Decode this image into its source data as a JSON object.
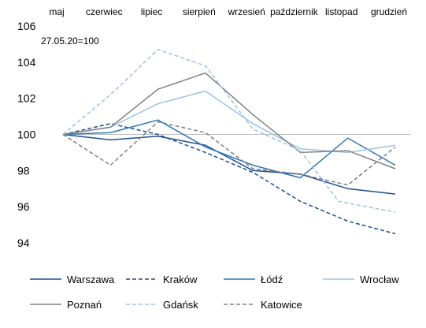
{
  "chart_data": {
    "type": "line",
    "title": "",
    "xlabel": "",
    "ylabel": "",
    "annotation": "27.05.20=100",
    "categories": [
      "maj",
      "czerwiec",
      "lipiec",
      "sierpień",
      "wrzesień",
      "październik",
      "listopad",
      "grudzień"
    ],
    "ylim": [
      94,
      106
    ],
    "yticks": [
      94,
      96,
      98,
      100,
      102,
      104,
      106
    ],
    "baseline": 100,
    "x_axis_position": "top",
    "legend_position": "bottom",
    "grid": false,
    "x": [
      0,
      1,
      2,
      3,
      4,
      5,
      5.8,
      6,
      7
    ],
    "series": [
      {
        "name": "Warszawa",
        "color": "#1d4f91",
        "dash": "solid",
        "values": [
          100,
          99.7,
          99.9,
          99.4,
          98.0,
          97.8,
          null,
          97.0,
          96.7
        ]
      },
      {
        "name": "Kraków",
        "color": "#1d4f91",
        "dash": "dashed",
        "values": [
          100,
          100.6,
          100.0,
          99.0,
          97.9,
          96.3,
          null,
          95.2,
          94.5
        ]
      },
      {
        "name": "Łódź",
        "color": "#2f75b5",
        "dash": "solid",
        "values": [
          100,
          100.1,
          100.8,
          99.3,
          98.3,
          97.6,
          null,
          99.8,
          98.3
        ]
      },
      {
        "name": "Wrocław",
        "color": "#9dc3e6",
        "dash": "solid",
        "values": [
          100,
          100.4,
          101.7,
          102.4,
          100.6,
          99.2,
          null,
          99.0,
          99.4
        ]
      },
      {
        "name": "Poznań",
        "color": "#808080",
        "dash": "solid",
        "values": [
          100,
          100.4,
          102.5,
          103.4,
          101.1,
          99.0,
          null,
          99.1,
          98.1
        ]
      },
      {
        "name": "Gdańsk",
        "color": "#9dc3e6",
        "dash": "dashed",
        "values": [
          100,
          102.2,
          104.7,
          103.8,
          100.3,
          99.1,
          96.3,
          null,
          95.7
        ]
      },
      {
        "name": "Katowice",
        "color": "#808080",
        "dash": "dashed",
        "values": [
          100,
          98.3,
          100.7,
          100.1,
          98.1,
          97.8,
          null,
          97.2,
          99.3
        ]
      }
    ]
  }
}
